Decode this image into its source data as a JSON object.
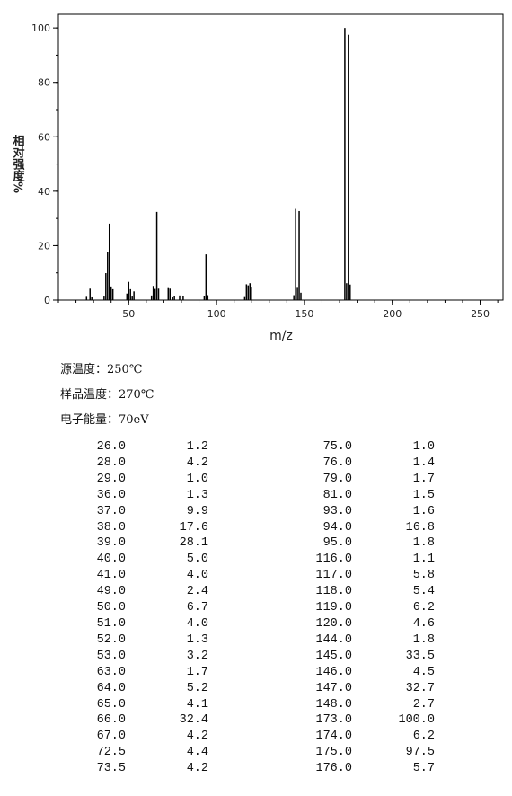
{
  "chart_data": {
    "type": "bar",
    "x_label": "m/z",
    "y_label": "相对强度%",
    "x": [
      26.0,
      28.0,
      29.0,
      36.0,
      37.0,
      38.0,
      39.0,
      40.0,
      41.0,
      49.0,
      50.0,
      51.0,
      52.0,
      53.0,
      63.0,
      64.0,
      65.0,
      66.0,
      67.0,
      72.5,
      73.5,
      75.0,
      76.0,
      79.0,
      81.0,
      93.0,
      94.0,
      95.0,
      116.0,
      117.0,
      118.0,
      119.0,
      120.0,
      144.0,
      145.0,
      146.0,
      147.0,
      148.0,
      173.0,
      174.0,
      175.0,
      176.0
    ],
    "values": [
      1.2,
      4.2,
      1.0,
      1.3,
      9.9,
      17.6,
      28.1,
      5.0,
      4.0,
      2.4,
      6.7,
      4.0,
      1.3,
      3.2,
      1.7,
      5.2,
      4.1,
      32.4,
      4.2,
      4.4,
      4.2,
      1.0,
      1.4,
      1.7,
      1.5,
      1.6,
      16.8,
      1.8,
      1.1,
      5.8,
      5.4,
      6.2,
      4.6,
      1.8,
      33.5,
      4.5,
      32.7,
      2.7,
      100.0,
      6.2,
      97.5,
      5.7
    ],
    "color": "#000000",
    "xlim": [
      10,
      263
    ],
    "xticks": [
      50,
      100,
      150,
      200,
      250
    ],
    "ylim": [
      0,
      105
    ],
    "yticks": [
      0,
      20,
      40,
      60,
      80,
      100
    ]
  },
  "meta": [
    "源温度：250℃",
    "样品温度：270℃",
    "电子能量：70eV"
  ],
  "table": {
    "rows": [
      [
        "26.0",
        "1.2",
        "75.0",
        "1.0"
      ],
      [
        "28.0",
        "4.2",
        "76.0",
        "1.4"
      ],
      [
        "29.0",
        "1.0",
        "79.0",
        "1.7"
      ],
      [
        "36.0",
        "1.3",
        "81.0",
        "1.5"
      ],
      [
        "37.0",
        "9.9",
        "93.0",
        "1.6"
      ],
      [
        "38.0",
        "17.6",
        "94.0",
        "16.8"
      ],
      [
        "39.0",
        "28.1",
        "95.0",
        "1.8"
      ],
      [
        "40.0",
        "5.0",
        "116.0",
        "1.1"
      ],
      [
        "41.0",
        "4.0",
        "117.0",
        "5.8"
      ],
      [
        "49.0",
        "2.4",
        "118.0",
        "5.4"
      ],
      [
        "50.0",
        "6.7",
        "119.0",
        "6.2"
      ],
      [
        "51.0",
        "4.0",
        "120.0",
        "4.6"
      ],
      [
        "52.0",
        "1.3",
        "144.0",
        "1.8"
      ],
      [
        "53.0",
        "3.2",
        "145.0",
        "33.5"
      ],
      [
        "63.0",
        "1.7",
        "146.0",
        "4.5"
      ],
      [
        "64.0",
        "5.2",
        "147.0",
        "32.7"
      ],
      [
        "65.0",
        "4.1",
        "148.0",
        "2.7"
      ],
      [
        "66.0",
        "32.4",
        "173.0",
        "100.0"
      ],
      [
        "67.0",
        "4.2",
        "174.0",
        "6.2"
      ],
      [
        "72.5",
        "4.4",
        "175.0",
        "97.5"
      ],
      [
        "73.5",
        "4.2",
        "176.0",
        "5.7"
      ]
    ]
  }
}
